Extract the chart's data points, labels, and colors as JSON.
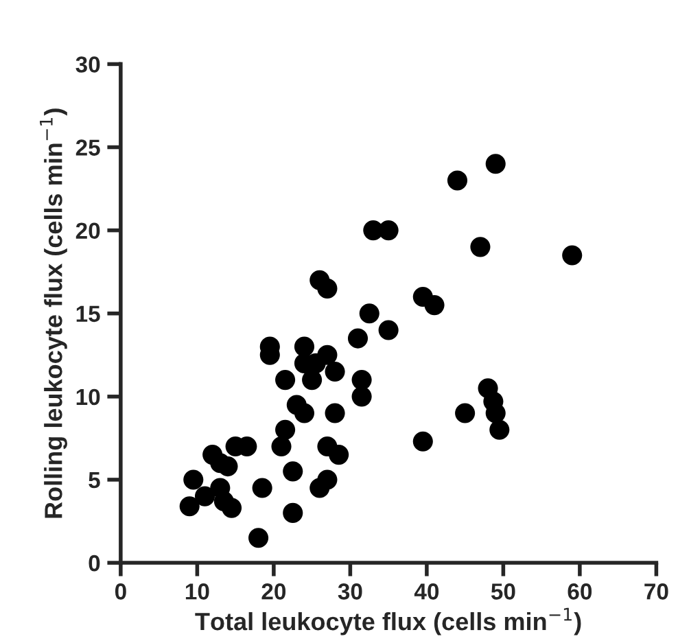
{
  "chart_data": {
    "type": "scatter",
    "xlabel": "Total leukocyte flux (cells min$^{−1}$)",
    "ylabel": "Rolling leukocyte flux (cells min$^{−1}$)",
    "xlim": [
      0,
      70
    ],
    "ylim": [
      0,
      30
    ],
    "xticks": [
      0,
      10,
      20,
      30,
      40,
      50,
      60,
      70
    ],
    "yticks": [
      0,
      5,
      10,
      15,
      20,
      25,
      30
    ],
    "marker": "circle",
    "grid": false,
    "legend": false,
    "series": [
      {
        "color": "#000000",
        "x": [
          9,
          9.5,
          11,
          12,
          13,
          13,
          13.5,
          14,
          14.5,
          15,
          16.5,
          18,
          18.5,
          19.5,
          19.5,
          21,
          21.5,
          21.5,
          22.5,
          22.5,
          23,
          24,
          24,
          24,
          25,
          25.5,
          26,
          26,
          27,
          27,
          27,
          27,
          28,
          28,
          28.5,
          31,
          31.5,
          31.5,
          32.5,
          33,
          35,
          35,
          39.5,
          39.5,
          41,
          44,
          45,
          47,
          48,
          49,
          48.7,
          49,
          49.5,
          59
        ],
        "values": [
          3.4,
          5,
          4,
          6.5,
          6,
          4.5,
          3.7,
          5.8,
          3.3,
          7,
          7,
          1.5,
          4.5,
          12.5,
          13,
          7,
          8,
          11,
          3,
          5.5,
          9.5,
          13,
          12,
          9,
          11,
          12,
          17,
          4.5,
          16.5,
          12.5,
          5,
          7,
          11.5,
          9,
          6.5,
          13.5,
          11,
          10,
          15,
          20,
          20,
          14,
          16,
          7.3,
          15.5,
          23,
          9,
          19,
          10.5,
          24,
          9.7,
          9,
          8,
          18.5
        ]
      }
    ]
  }
}
